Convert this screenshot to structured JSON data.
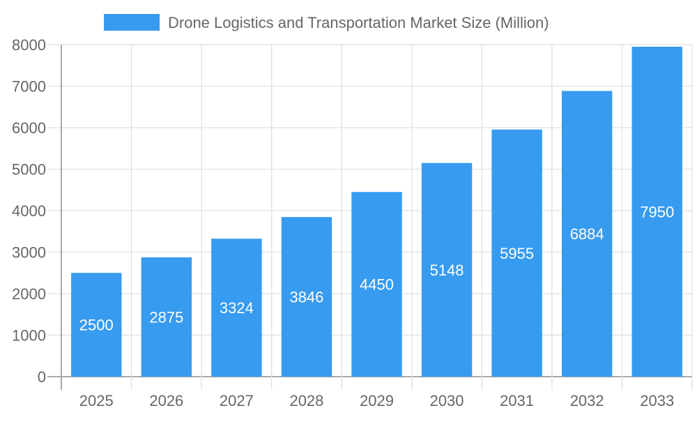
{
  "chart_data": {
    "type": "bar",
    "title": "",
    "xlabel": "",
    "ylabel": "",
    "categories": [
      "2025",
      "2026",
      "2027",
      "2028",
      "2029",
      "2030",
      "2031",
      "2032",
      "2033"
    ],
    "series": [
      {
        "name": "Drone Logistics and Transportation Market Size (Million)",
        "values": [
          2500,
          2875,
          3324,
          3846,
          4450,
          5148,
          5955,
          6884,
          7950
        ]
      }
    ],
    "ylim": [
      0,
      8000
    ],
    "yticks": [
      0,
      1000,
      2000,
      3000,
      4000,
      5000,
      6000,
      7000,
      8000
    ],
    "grid": true,
    "legend": "top",
    "data_labels": true,
    "colors": {
      "bar": "#379BEF",
      "grid": "#e0e0e0",
      "axis": "#a8a8a8",
      "text": "#666666",
      "label": "#ffffff"
    }
  }
}
